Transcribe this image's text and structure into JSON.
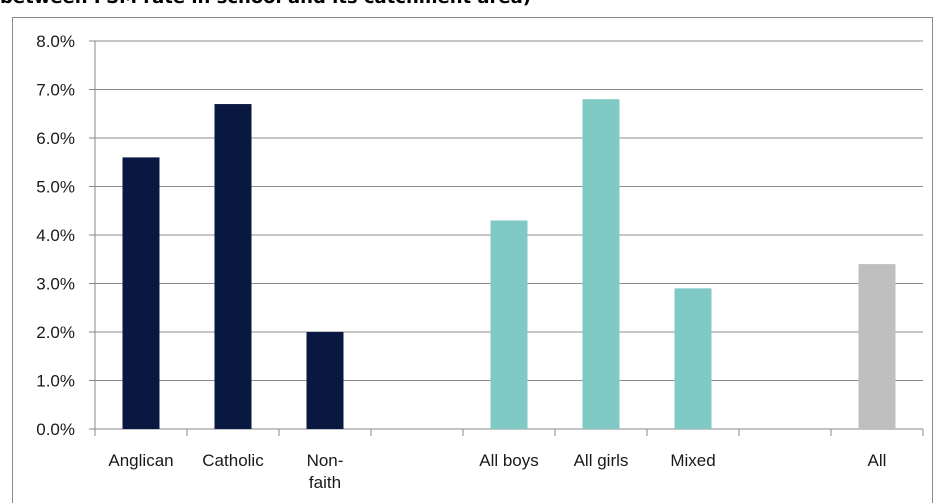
{
  "title": "between FSM rate in school and its catchment area)",
  "chart_data": {
    "type": "bar",
    "title": "between FSM rate in school and its catchment area)",
    "xlabel": "",
    "ylabel": "",
    "ylim": [
      0,
      8
    ],
    "y_format": "percent_1dp",
    "grid": true,
    "categories": [
      "Anglican",
      "Catholic",
      "Non-faith",
      "",
      "All boys",
      "All girls",
      "Mixed",
      "",
      "All"
    ],
    "category_lines": [
      [
        "Anglican"
      ],
      [
        "Catholic"
      ],
      [
        "Non-",
        "faith"
      ],
      [],
      [
        "All boys"
      ],
      [
        "All girls"
      ],
      [
        "Mixed"
      ],
      [],
      [
        "All"
      ]
    ],
    "values": [
      5.6,
      6.7,
      2.0,
      null,
      4.3,
      6.8,
      2.9,
      null,
      3.4
    ],
    "bar_colors": [
      "#091841",
      "#091841",
      "#091841",
      null,
      "#80cac6",
      "#80cac6",
      "#80cac6",
      null,
      "#bfbfbf"
    ],
    "yticks": [
      0,
      1,
      2,
      3,
      4,
      5,
      6,
      7,
      8
    ],
    "ytick_labels": [
      "0.0%",
      "1.0%",
      "2.0%",
      "3.0%",
      "4.0%",
      "5.0%",
      "6.0%",
      "7.0%",
      "8.0%"
    ]
  }
}
